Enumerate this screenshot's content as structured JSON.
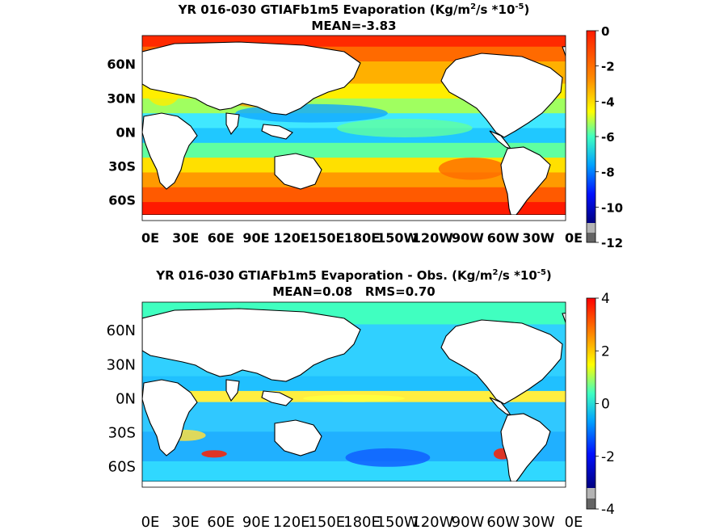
{
  "chart_data": [
    {
      "type": "heatmap",
      "title_parts": [
        "YR 016-030 GTIAFb1m5  Evaporation (Kg/m",
        "2",
        "/s *10",
        "-5",
        ")"
      ],
      "subtitle": "MEAN=-3.83",
      "yticks": [
        "60N",
        "30N",
        "0N",
        "30S",
        "60S"
      ],
      "xticks": [
        "0E",
        "30E",
        "60E",
        "90E",
        "120E",
        "150E",
        "180E",
        "150W",
        "120W",
        "90W",
        "60W",
        "30W",
        "0E"
      ],
      "colorbar": {
        "ticks": [
          0,
          -2,
          -4,
          -6,
          -8,
          -10,
          -12
        ],
        "range": [
          -12,
          0
        ]
      }
    },
    {
      "type": "heatmap",
      "title_parts": [
        "YR 016-030 GTIAFb1m5 Evaporation - Obs. (Kg/m",
        "2",
        "/s *10",
        "-5",
        ")"
      ],
      "subtitle": "MEAN=0.08   RMS=0.70",
      "yticks": [
        "60N",
        "30N",
        "0N",
        "30S",
        "60S"
      ],
      "xticks": [
        "0E",
        "30E",
        "60E",
        "90E",
        "120E",
        "150E",
        "180E",
        "150W",
        "120W",
        "90W",
        "60W",
        "30W",
        "0E"
      ],
      "colorbar": {
        "ticks": [
          4,
          2,
          0,
          -2,
          -4
        ],
        "range": [
          -4,
          4
        ]
      }
    }
  ],
  "colors": {
    "jet_dark_red": "#7f0000",
    "jet_red": "#ff0000",
    "jet_orange": "#ff8000",
    "jet_yellow": "#ffff00",
    "jet_cyan": "#00ffff",
    "jet_blue": "#0000ff",
    "jet_dark_blue": "#00007f",
    "land": "#ffffff",
    "outline": "#000000"
  }
}
